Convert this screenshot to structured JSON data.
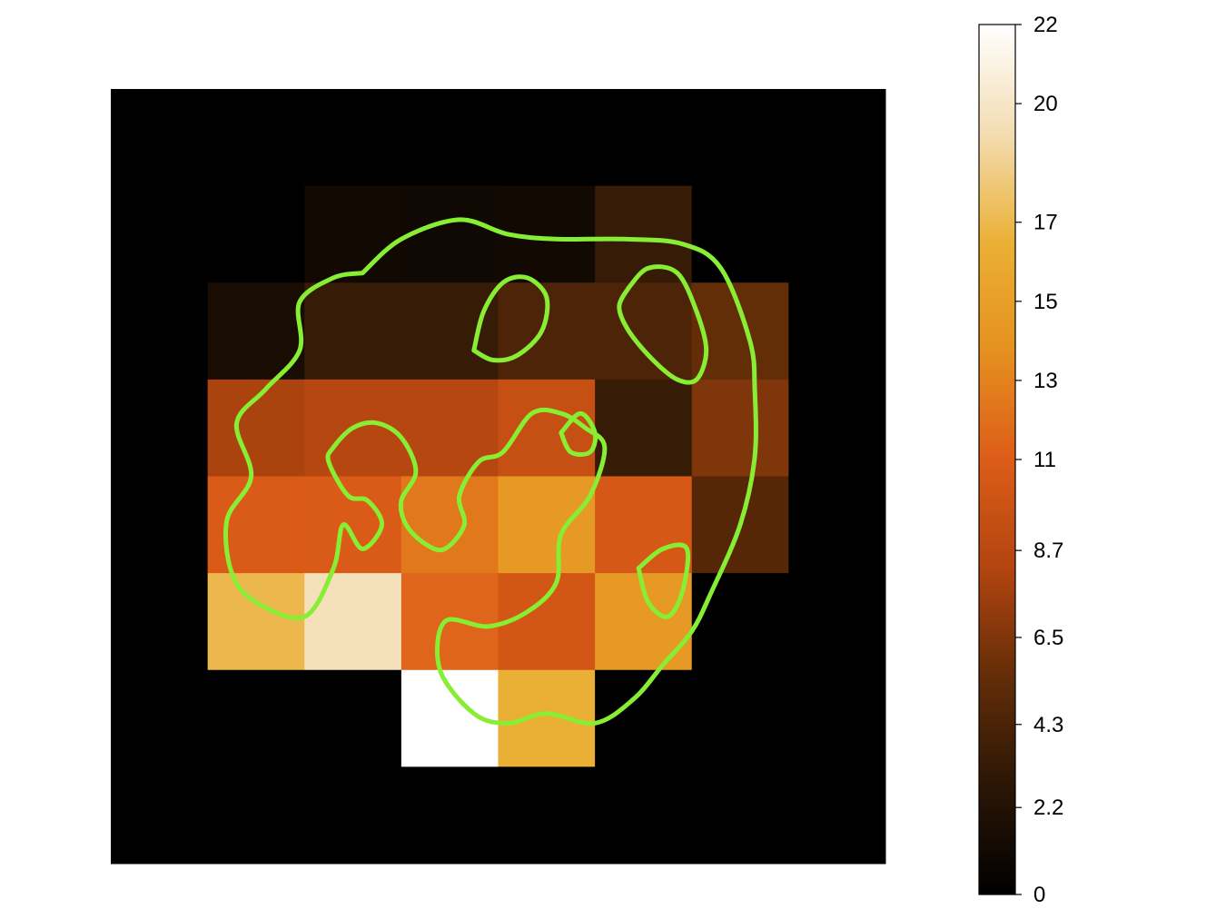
{
  "chart_data": {
    "type": "heatmap",
    "grid": {
      "rows": 8,
      "cols": 8
    },
    "values": [
      [
        0,
        0,
        0,
        0,
        0,
        0,
        0,
        0
      ],
      [
        0,
        0,
        1.1,
        1.0,
        1.1,
        3.3,
        0,
        0
      ],
      [
        0,
        1.6,
        3.3,
        3.3,
        4.4,
        4.4,
        5.5,
        0
      ],
      [
        0,
        8.0,
        8.5,
        8.5,
        9.5,
        3.3,
        6.5,
        0
      ],
      [
        0,
        10.8,
        10.8,
        12.5,
        14.5,
        10.5,
        4.8,
        0
      ],
      [
        0,
        17.0,
        19.5,
        11.5,
        10.3,
        14.5,
        0,
        0
      ],
      [
        0,
        0,
        0,
        22.0,
        16.5,
        0,
        0,
        0
      ],
      [
        0,
        0,
        0,
        0,
        0,
        0,
        0,
        0
      ]
    ],
    "colormap": [
      "#000000",
      "#2b1606",
      "#632d08",
      "#b24510",
      "#dd5c18",
      "#e5901f",
      "#eab036",
      "#f3ddb2",
      "#ffffff"
    ],
    "colorbar": {
      "range": [
        0,
        22
      ],
      "ticks": [
        {
          "label": "0",
          "value": 0
        },
        {
          "label": "2.2",
          "value": 2.2
        },
        {
          "label": "4.3",
          "value": 4.3
        },
        {
          "label": "6.5",
          "value": 6.5
        },
        {
          "label": "8.7",
          "value": 8.7
        },
        {
          "label": "11",
          "value": 11
        },
        {
          "label": "13",
          "value": 13
        },
        {
          "label": "15",
          "value": 15
        },
        {
          "label": "17",
          "value": 17
        },
        {
          "label": "20",
          "value": 20
        },
        {
          "label": "22",
          "value": 22
        }
      ]
    },
    "contour_color": "#88ee33",
    "contours": [
      [
        [
          2.6,
          1.9
        ],
        [
          3.0,
          1.55
        ],
        [
          3.6,
          1.35
        ],
        [
          4.1,
          1.5
        ],
        [
          4.6,
          1.55
        ],
        [
          5.3,
          1.55
        ],
        [
          5.9,
          1.6
        ],
        [
          6.3,
          1.85
        ],
        [
          6.6,
          2.6
        ],
        [
          6.65,
          3.1
        ],
        [
          6.65,
          3.8
        ],
        [
          6.5,
          4.5
        ],
        [
          6.2,
          5.2
        ],
        [
          6.0,
          5.6
        ],
        [
          5.7,
          5.95
        ],
        [
          5.4,
          6.3
        ],
        [
          5.0,
          6.55
        ],
        [
          4.5,
          6.45
        ],
        [
          4.1,
          6.55
        ],
        [
          3.75,
          6.45
        ],
        [
          3.4,
          6.0
        ],
        [
          3.45,
          5.5
        ],
        [
          3.9,
          5.55
        ],
        [
          4.3,
          5.4
        ],
        [
          4.6,
          5.1
        ],
        [
          4.65,
          4.6
        ],
        [
          4.95,
          4.2
        ],
        [
          5.1,
          3.7
        ],
        [
          4.9,
          3.5
        ],
        [
          4.65,
          3.35
        ],
        [
          4.35,
          3.35
        ],
        [
          4.05,
          3.75
        ],
        [
          3.8,
          3.85
        ],
        [
          3.6,
          4.2
        ],
        [
          3.65,
          4.5
        ],
        [
          3.45,
          4.75
        ],
        [
          3.25,
          4.7
        ],
        [
          3.05,
          4.5
        ],
        [
          3.0,
          4.25
        ],
        [
          3.15,
          3.95
        ],
        [
          3.0,
          3.6
        ],
        [
          2.75,
          3.45
        ],
        [
          2.5,
          3.5
        ],
        [
          2.3,
          3.7
        ],
        [
          2.25,
          3.85
        ],
        [
          2.45,
          4.2
        ],
        [
          2.65,
          4.25
        ],
        [
          2.8,
          4.5
        ],
        [
          2.6,
          4.75
        ],
        [
          2.4,
          4.5
        ],
        [
          2.3,
          4.95
        ],
        [
          2.0,
          5.45
        ],
        [
          1.5,
          5.3
        ],
        [
          1.25,
          5.0
        ],
        [
          1.2,
          4.45
        ],
        [
          1.45,
          4.0
        ],
        [
          1.3,
          3.45
        ],
        [
          1.6,
          3.1
        ],
        [
          1.95,
          2.7
        ],
        [
          1.95,
          2.2
        ],
        [
          2.3,
          1.95
        ],
        [
          2.6,
          1.9
        ]
      ],
      [
        [
          3.75,
          2.7
        ],
        [
          3.85,
          2.3
        ],
        [
          4.05,
          2.0
        ],
        [
          4.3,
          1.95
        ],
        [
          4.5,
          2.15
        ],
        [
          4.45,
          2.5
        ],
        [
          4.2,
          2.75
        ],
        [
          3.95,
          2.8
        ],
        [
          3.75,
          2.7
        ]
      ],
      [
        [
          5.35,
          2.05
        ],
        [
          5.55,
          1.85
        ],
        [
          5.85,
          1.9
        ],
        [
          6.05,
          2.3
        ],
        [
          6.15,
          2.7
        ],
        [
          6.05,
          3.0
        ],
        [
          5.85,
          3.0
        ],
        [
          5.6,
          2.8
        ],
        [
          5.35,
          2.5
        ],
        [
          5.25,
          2.25
        ],
        [
          5.35,
          2.05
        ]
      ],
      [
        [
          4.65,
          3.55
        ],
        [
          4.85,
          3.35
        ],
        [
          5.0,
          3.55
        ],
        [
          4.95,
          3.75
        ],
        [
          4.75,
          3.75
        ],
        [
          4.65,
          3.55
        ]
      ],
      [
        [
          5.45,
          4.95
        ],
        [
          5.7,
          4.75
        ],
        [
          5.95,
          4.75
        ],
        [
          5.9,
          5.2
        ],
        [
          5.75,
          5.45
        ],
        [
          5.55,
          5.3
        ],
        [
          5.45,
          4.95
        ]
      ]
    ]
  }
}
